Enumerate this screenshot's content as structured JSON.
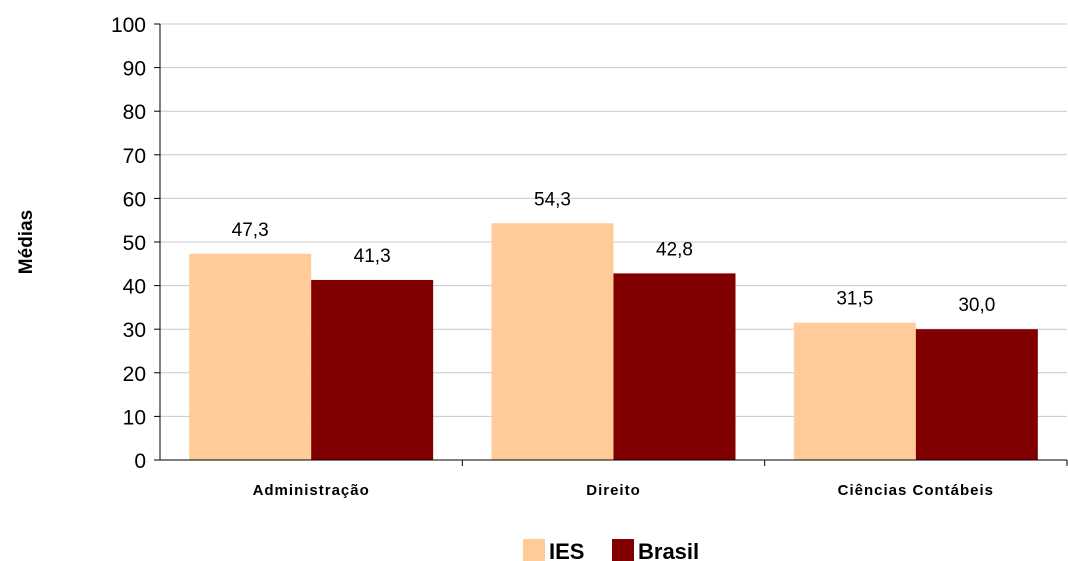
{
  "chart_data": {
    "type": "bar",
    "title": "",
    "xlabel": "",
    "ylabel": "Médias",
    "ylim": [
      0,
      100
    ],
    "yticks": [
      0,
      10,
      20,
      30,
      40,
      50,
      60,
      70,
      80,
      90,
      100
    ],
    "grid": true,
    "legend_position": "bottom",
    "categories": [
      "Administração",
      "Direito",
      "Ciências Contábeis"
    ],
    "series": [
      {
        "name": "IES",
        "color": "#FFCC99",
        "values": [
          47.3,
          54.3,
          31.5
        ],
        "labels": [
          "47,3",
          "54,3",
          "31,5"
        ]
      },
      {
        "name": "Brasil",
        "color": "#800000",
        "values": [
          41.3,
          42.8,
          30.0
        ],
        "labels": [
          "41,3",
          "42,8",
          "30,0"
        ]
      }
    ]
  }
}
